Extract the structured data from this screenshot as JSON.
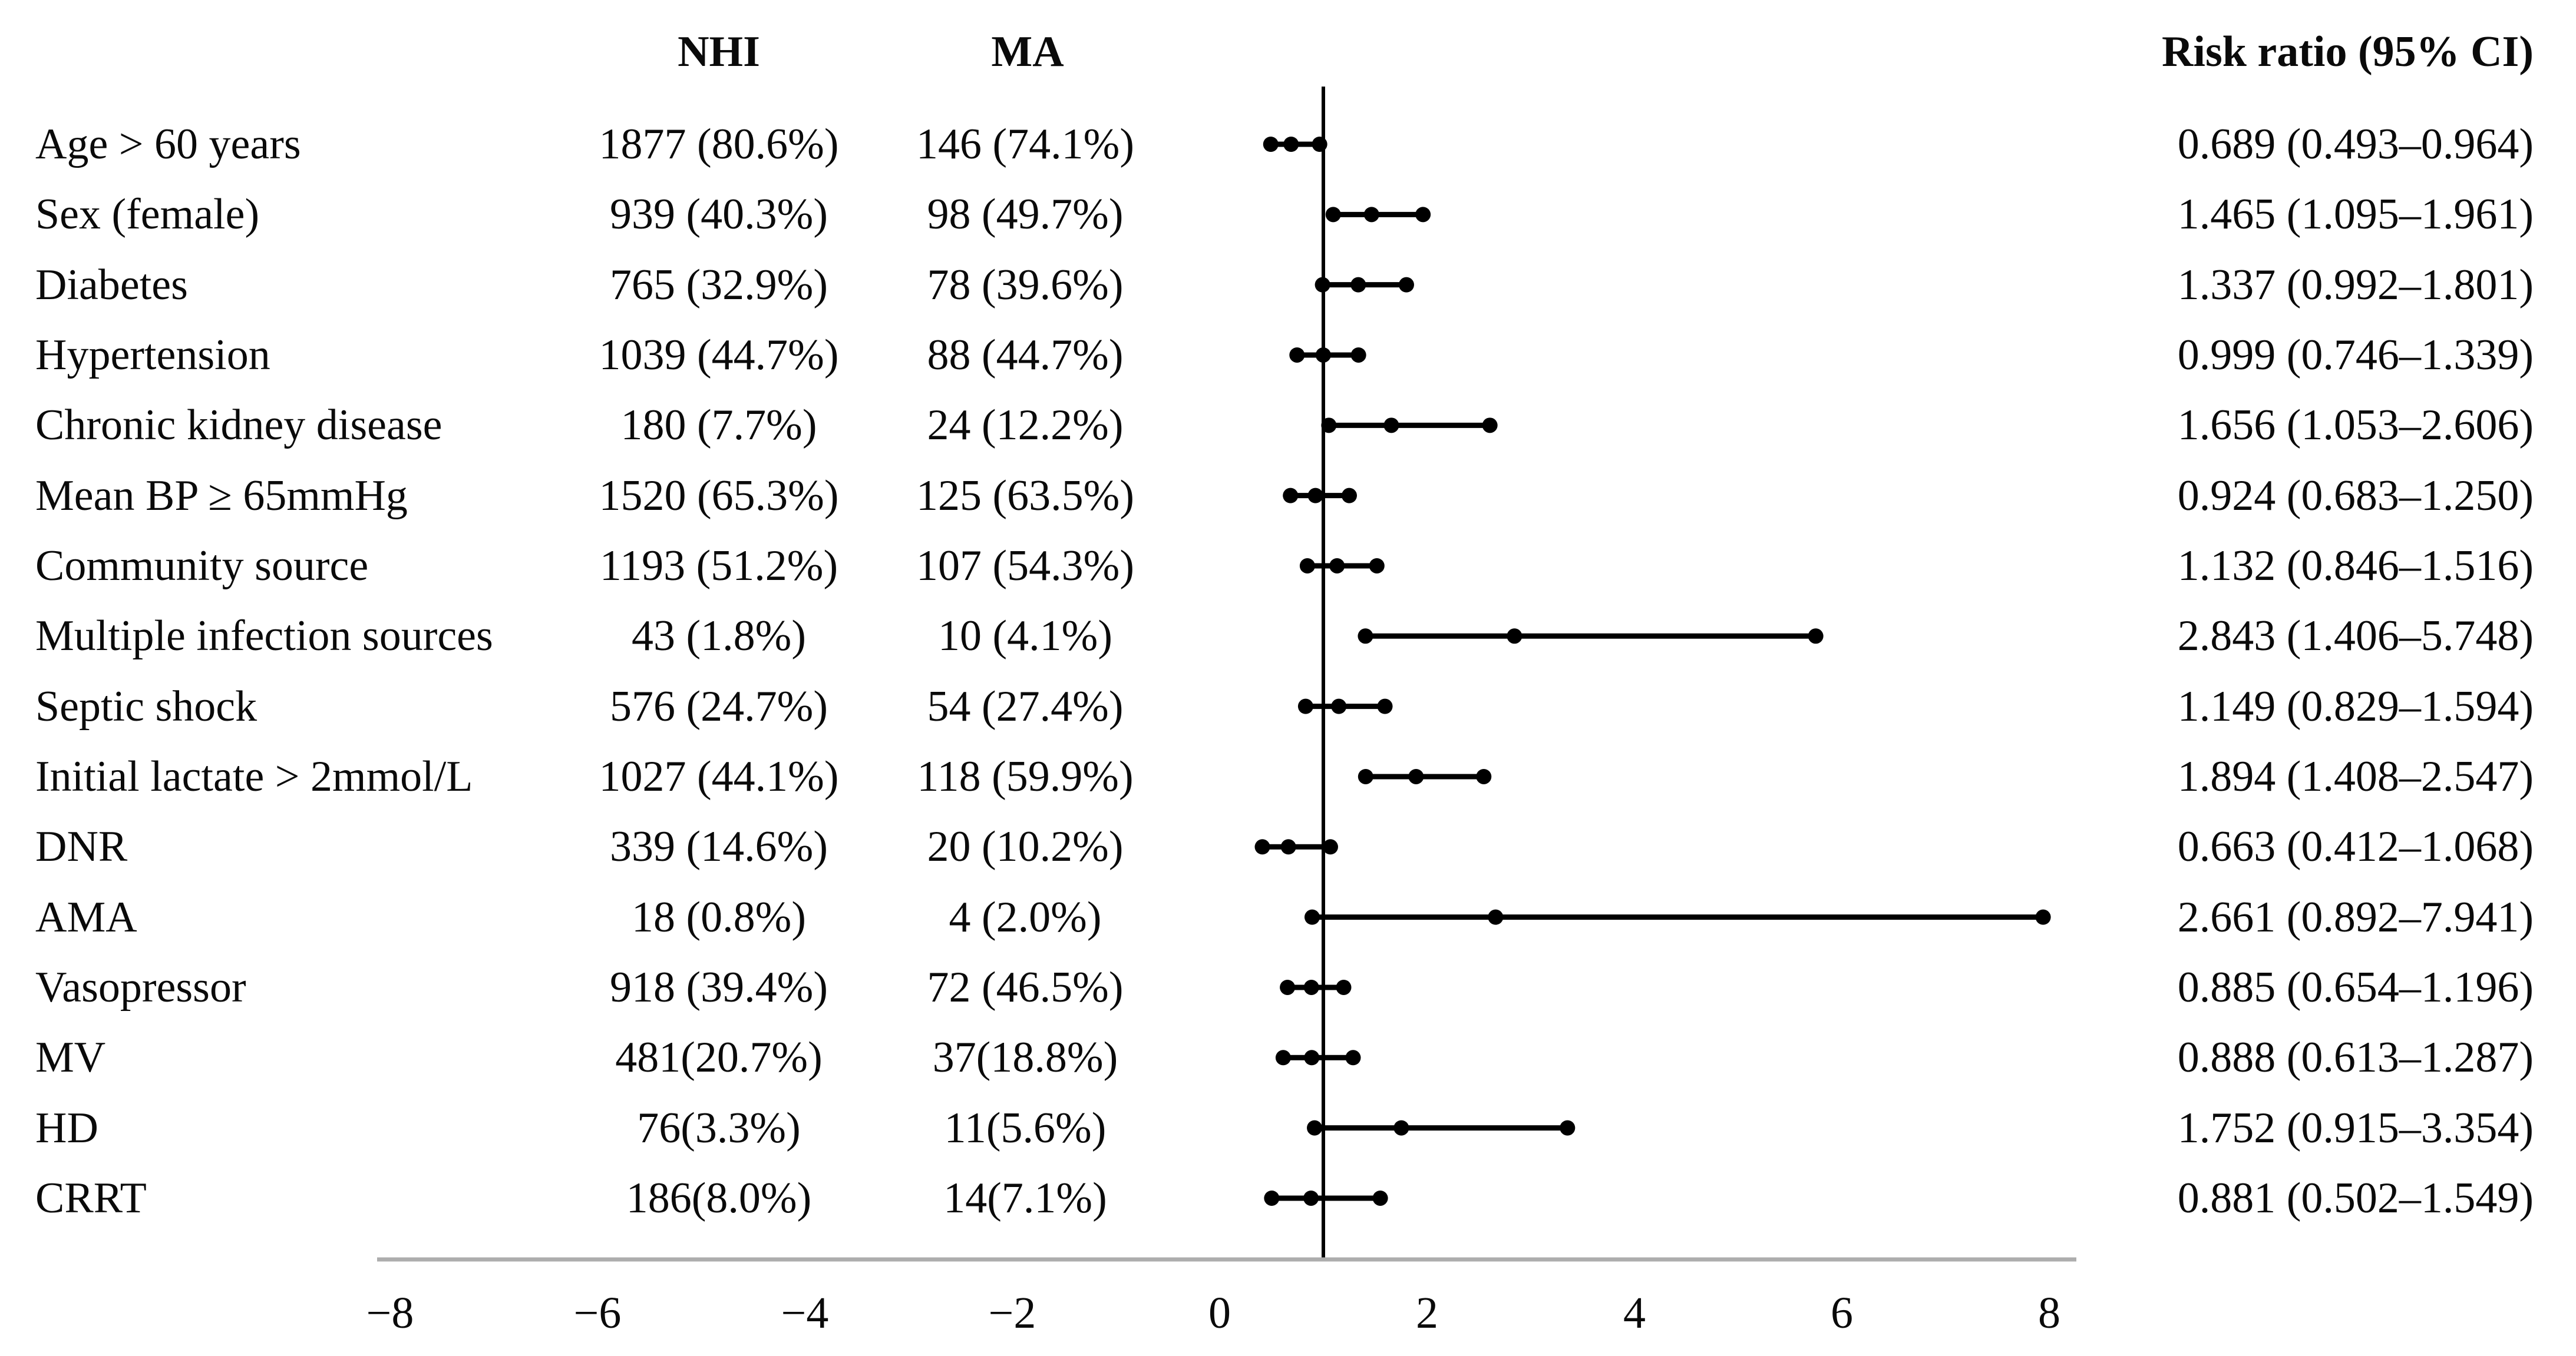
{
  "header": {
    "nhi": "NHI",
    "ma": "MA",
    "risk": "Risk ratio (95% CI)"
  },
  "axis": {
    "tick_labels": [
      "−8",
      "−6",
      "−4",
      "−2",
      "0",
      "2",
      "4",
      "6",
      "8"
    ],
    "tick_values": [
      -8,
      -6,
      -4,
      -2,
      0,
      2,
      4,
      6,
      8
    ],
    "reference_value": 1
  },
  "colors": {
    "text": "#0a0a0a",
    "marker": "#000000",
    "reference_line": "#000000",
    "axis_line": "#adadad"
  },
  "rows": [
    {
      "label": "Age > 60 years",
      "nhi": "1877 (80.6%)",
      "ma": "146 (74.1%)",
      "rr": "0.689 (0.493–0.964)",
      "est": 0.689,
      "lo": 0.493,
      "hi": 0.964
    },
    {
      "label": "Sex (female)",
      "nhi": "939 (40.3%)",
      "ma": "98 (49.7%)",
      "rr": "1.465 (1.095–1.961)",
      "est": 1.465,
      "lo": 1.095,
      "hi": 1.961
    },
    {
      "label": "Diabetes",
      "nhi": "765 (32.9%)",
      "ma": "78 (39.6%)",
      "rr": "1.337 (0.992–1.801)",
      "est": 1.337,
      "lo": 0.992,
      "hi": 1.801
    },
    {
      "label": "Hypertension",
      "nhi": "1039 (44.7%)",
      "ma": "88 (44.7%)",
      "rr": "0.999 (0.746–1.339)",
      "est": 0.999,
      "lo": 0.746,
      "hi": 1.339
    },
    {
      "label": "Chronic kidney disease",
      "nhi": "180 (7.7%)",
      "ma": "24 (12.2%)",
      "rr": "1.656 (1.053–2.606)",
      "est": 1.656,
      "lo": 1.053,
      "hi": 2.606
    },
    {
      "label": "Mean BP ≥ 65mmHg",
      "nhi": "1520 (65.3%)",
      "ma": "125 (63.5%)",
      "rr": "0.924 (0.683–1.250)",
      "est": 0.924,
      "lo": 0.683,
      "hi": 1.25
    },
    {
      "label": "Community source",
      "nhi": "1193 (51.2%)",
      "ma": "107 (54.3%)",
      "rr": "1.132 (0.846–1.516)",
      "est": 1.132,
      "lo": 0.846,
      "hi": 1.516
    },
    {
      "label": "Multiple infection sources",
      "nhi": "43 (1.8%)",
      "ma": "10 (4.1%)",
      "rr": "2.843 (1.406–5.748)",
      "est": 2.843,
      "lo": 1.406,
      "hi": 5.748
    },
    {
      "label": "Septic shock",
      "nhi": "576 (24.7%)",
      "ma": "54 (27.4%)",
      "rr": "1.149 (0.829–1.594)",
      "est": 1.149,
      "lo": 0.829,
      "hi": 1.594
    },
    {
      "label": "Initial lactate > 2mmol/L",
      "nhi": "1027 (44.1%)",
      "ma": "118 (59.9%)",
      "rr": "1.894 (1.408–2.547)",
      "est": 1.894,
      "lo": 1.408,
      "hi": 2.547
    },
    {
      "label": "DNR",
      "nhi": "339 (14.6%)",
      "ma": "20 (10.2%)",
      "rr": "0.663 (0.412–1.068)",
      "est": 0.663,
      "lo": 0.412,
      "hi": 1.068
    },
    {
      "label": "AMA",
      "nhi": "18 (0.8%)",
      "ma": "4 (2.0%)",
      "rr": "2.661 (0.892–7.941)",
      "est": 2.661,
      "lo": 0.892,
      "hi": 7.941
    },
    {
      "label": "Vasopressor",
      "nhi": "918 (39.4%)",
      "ma": "72 (46.5%)",
      "rr": "0.885 (0.654–1.196)",
      "est": 0.885,
      "lo": 0.654,
      "hi": 1.196
    },
    {
      "label": "MV",
      "nhi": "481(20.7%)",
      "ma": "37(18.8%)",
      "rr": "0.888 (0.613–1.287)",
      "est": 0.888,
      "lo": 0.613,
      "hi": 1.287
    },
    {
      "label": "HD",
      "nhi": "76(3.3%)",
      "ma": "11(5.6%)",
      "rr": "1.752 (0.915–3.354)",
      "est": 1.752,
      "lo": 0.915,
      "hi": 3.354
    },
    {
      "label": "CRRT",
      "nhi": "186(8.0%)",
      "ma": "14(7.1%)",
      "rr": "0.881 (0.502–1.549)",
      "est": 0.881,
      "lo": 0.502,
      "hi": 1.549
    }
  ],
  "chart_data": {
    "type": "scatter",
    "subtype": "forest-plot",
    "title": "",
    "xlabel": "",
    "ylabel": "",
    "xlim": [
      -8.2,
      8.3
    ],
    "x_ticks": [
      -8,
      -6,
      -4,
      -2,
      0,
      2,
      4,
      6,
      8
    ],
    "grid": false,
    "reference_line_x": 1,
    "legend_position": "none",
    "categories": [
      "Age > 60 years",
      "Sex (female)",
      "Diabetes",
      "Hypertension",
      "Chronic kidney disease",
      "Mean BP ≥ 65mmHg",
      "Community source",
      "Multiple infection sources",
      "Septic shock",
      "Initial lactate > 2mmol/L",
      "DNR",
      "AMA",
      "Vasopressor",
      "MV",
      "HD",
      "CRRT"
    ],
    "series": [
      {
        "name": "Risk ratio",
        "values": [
          0.689,
          1.465,
          1.337,
          0.999,
          1.656,
          0.924,
          1.132,
          2.843,
          1.149,
          1.894,
          0.663,
          2.661,
          0.885,
          0.888,
          1.752,
          0.881
        ]
      },
      {
        "name": "95% CI lower",
        "values": [
          0.493,
          1.095,
          0.992,
          0.746,
          1.053,
          0.683,
          0.846,
          1.406,
          0.829,
          1.408,
          0.412,
          0.892,
          0.654,
          0.613,
          0.915,
          0.502
        ]
      },
      {
        "name": "95% CI upper",
        "values": [
          0.964,
          1.961,
          1.801,
          1.339,
          2.606,
          1.25,
          1.516,
          5.748,
          1.594,
          2.547,
          1.068,
          7.941,
          1.196,
          1.287,
          3.354,
          1.549
        ]
      },
      {
        "name": "NHI n (%)",
        "values": [
          "1877 (80.6%)",
          "939 (40.3%)",
          "765 (32.9%)",
          "1039 (44.7%)",
          "180 (7.7%)",
          "1520 (65.3%)",
          "1193 (51.2%)",
          "43 (1.8%)",
          "576 (24.7%)",
          "1027 (44.1%)",
          "339 (14.6%)",
          "18 (0.8%)",
          "918 (39.4%)",
          "481(20.7%)",
          "76(3.3%)",
          "186(8.0%)"
        ]
      },
      {
        "name": "MA n (%)",
        "values": [
          "146 (74.1%)",
          "98 (49.7%)",
          "78 (39.6%)",
          "88 (44.7%)",
          "24 (12.2%)",
          "125 (63.5%)",
          "107 (54.3%)",
          "10 (4.1%)",
          "54 (27.4%)",
          "118 (59.9%)",
          "20 (10.2%)",
          "4 (2.0%)",
          "72 (46.5%)",
          "37(18.8%)",
          "11(5.6%)",
          "14(7.1%)"
        ]
      }
    ],
    "column_headers": [
      "NHI",
      "MA",
      "Risk ratio (95% CI)"
    ]
  }
}
